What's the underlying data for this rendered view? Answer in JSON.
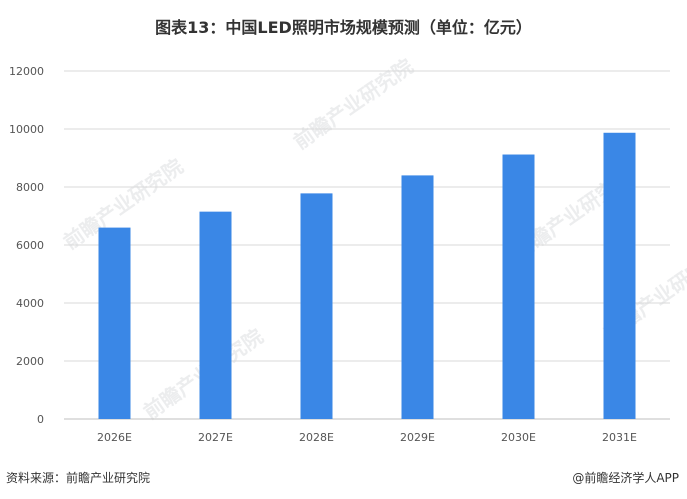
{
  "title": "图表13：中国LED照明市场规模预测（单位：亿元）",
  "source": "资料来源：前瞻产业研究院",
  "credit": "@前瞻经济学人APP",
  "watermark": "前瞻产业研究院",
  "colors": {
    "bar": "#3a87e6",
    "grid": "#d9d9d9",
    "axis": "#bfbfbf"
  },
  "chart_data": {
    "type": "bar",
    "categories": [
      "2026E",
      "2027E",
      "2028E",
      "2029E",
      "2030E",
      "2031E"
    ],
    "values": [
      6600,
      7150,
      7780,
      8400,
      9120,
      9870
    ],
    "title": "图表13：中国LED照明市场规模预测（单位：亿元）",
    "xlabel": "",
    "ylabel": "",
    "ylim": [
      0,
      12000
    ],
    "yticks": [
      0,
      2000,
      4000,
      6000,
      8000,
      10000,
      12000
    ],
    "grid": true,
    "legend": "none"
  }
}
